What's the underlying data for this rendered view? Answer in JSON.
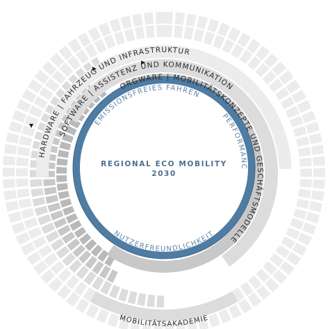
{
  "diagram": {
    "rings": {
      "hardware": "HARDWARE  |  FAHRZEUG UND INFRASTRUKTUR",
      "software": "SOFTWARE  |  ASSISTENZ UND KOMMUNIKATION",
      "orgware": "ORGWARE  |  MOBILITÄTSKONZEPTE UND GESCHÄFTSMODELLE"
    },
    "inner_labels": {
      "emissions": "EMISSIONSFREIES FAHREN",
      "performance": "PERFORMANCE",
      "usability": "NUTZERFREUNDLICHKEIT"
    },
    "center": {
      "line1": "REGIONAL ECO MOBILITY",
      "line2": "2030"
    },
    "bottom_label": "MOBILITÄTSAKADEMIE",
    "colors": {
      "inner_ring": "#4f7ca2",
      "inner_ring_edge": "#3d6688",
      "text_blue": "#5b84a6",
      "gray_light": "#ececec",
      "gray_mid": "#dcdcdc",
      "gray_dark": "#c8c8c8",
      "gray_darker": "#b9b9b9"
    }
  }
}
